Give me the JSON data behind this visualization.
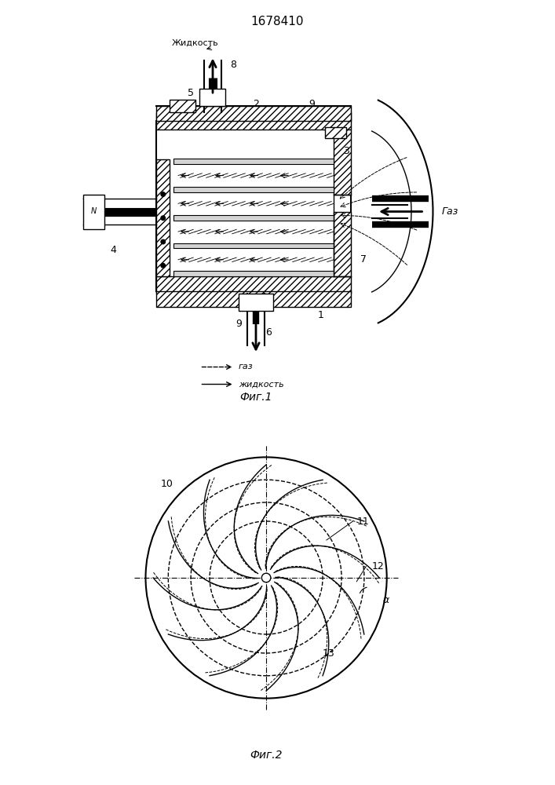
{
  "title": "1678410",
  "fig1_label": "Фиг.1",
  "fig2_label": "Фиг.2",
  "legend_gas": "газ",
  "legend_liquid": "жидкость",
  "label_zhidkost": "Жидкость",
  "label_gaz": "Газ",
  "label_n": "N",
  "bg_color": "#ffffff",
  "line_color": "#000000",
  "hatch_color": "#000000"
}
